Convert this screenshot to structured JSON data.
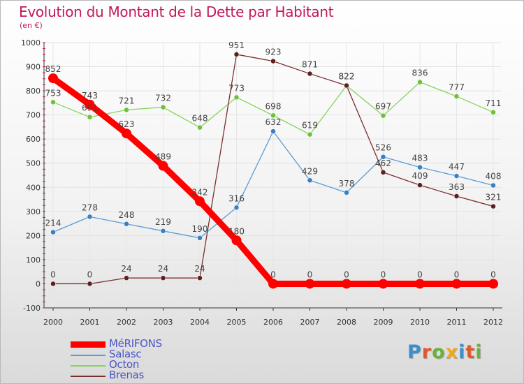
{
  "title": "Evolution du Montant de la Dette par Habitant",
  "subtitle": "(en €)",
  "logo": {
    "text": "Proxiti",
    "letters": [
      {
        "ch": "P",
        "color": "#3d8ec9"
      },
      {
        "ch": "r",
        "color": "#e0582e"
      },
      {
        "ch": "o",
        "color": "#6bb23a"
      },
      {
        "ch": "x",
        "color": "#f2a71b"
      },
      {
        "ch": "i",
        "color": "#3d8ec9"
      },
      {
        "ch": "t",
        "color": "#e0582e"
      },
      {
        "ch": "i",
        "color": "#6bb23a"
      }
    ]
  },
  "chart_data": {
    "type": "line",
    "title": "Evolution du Montant de la Dette par Habitant",
    "ylabel": "(en €)",
    "x": [
      "2000",
      "2001",
      "2002",
      "2003",
      "2004",
      "2005",
      "2006",
      "2007",
      "2008",
      "2009",
      "2010",
      "2011",
      "2012"
    ],
    "yticks": [
      "1000",
      "900",
      "800",
      "700",
      "600",
      "500",
      "400",
      "300",
      "200",
      "100",
      "0",
      "-100"
    ],
    "ylim": [
      -100,
      1000
    ],
    "legend_position": "bottom-left",
    "series": [
      {
        "name": "Salasc",
        "color": "#5b9bd5",
        "marker": "#3a7fc0",
        "thick": false,
        "values": [
          214,
          278,
          248,
          219,
          190,
          316,
          632,
          429,
          378,
          526,
          483,
          447,
          408
        ],
        "labels": [
          "214",
          "278",
          "248",
          "219",
          "190",
          "316",
          "632",
          "429",
          "378",
          "526",
          "483",
          "447",
          "408"
        ]
      },
      {
        "name": "Octon",
        "color": "#88d35c",
        "marker": "#6cc13a",
        "thick": false,
        "values": [
          753,
          691,
          721,
          732,
          648,
          773,
          698,
          619,
          822,
          697,
          836,
          777,
          711
        ],
        "labels": [
          "753",
          "691",
          "721",
          "732",
          "648",
          "773",
          "698",
          "619",
          "822",
          "697",
          "836",
          "777",
          "711"
        ]
      },
      {
        "name": "Brenas",
        "color": "#7b2e2e",
        "marker": "#5e1f1f",
        "thick": false,
        "values": [
          0,
          0,
          24,
          24,
          24,
          951,
          923,
          871,
          822,
          462,
          409,
          363,
          321
        ],
        "labels": [
          "0",
          "0",
          "24",
          "24",
          "24",
          "951",
          "923",
          "871",
          "822",
          "462",
          "409",
          "363",
          "321"
        ]
      },
      {
        "name": "MéRIFONS",
        "color": "#ff0000",
        "marker": "#ff0000",
        "thick": true,
        "values": [
          852,
          743,
          623,
          489,
          342,
          180,
          0,
          0,
          0,
          0,
          0,
          0,
          0
        ],
        "labels": [
          "852",
          "743",
          "623",
          "489",
          "342",
          "180",
          "0",
          "0",
          "0",
          "0",
          "0",
          "0",
          "0"
        ]
      }
    ]
  }
}
